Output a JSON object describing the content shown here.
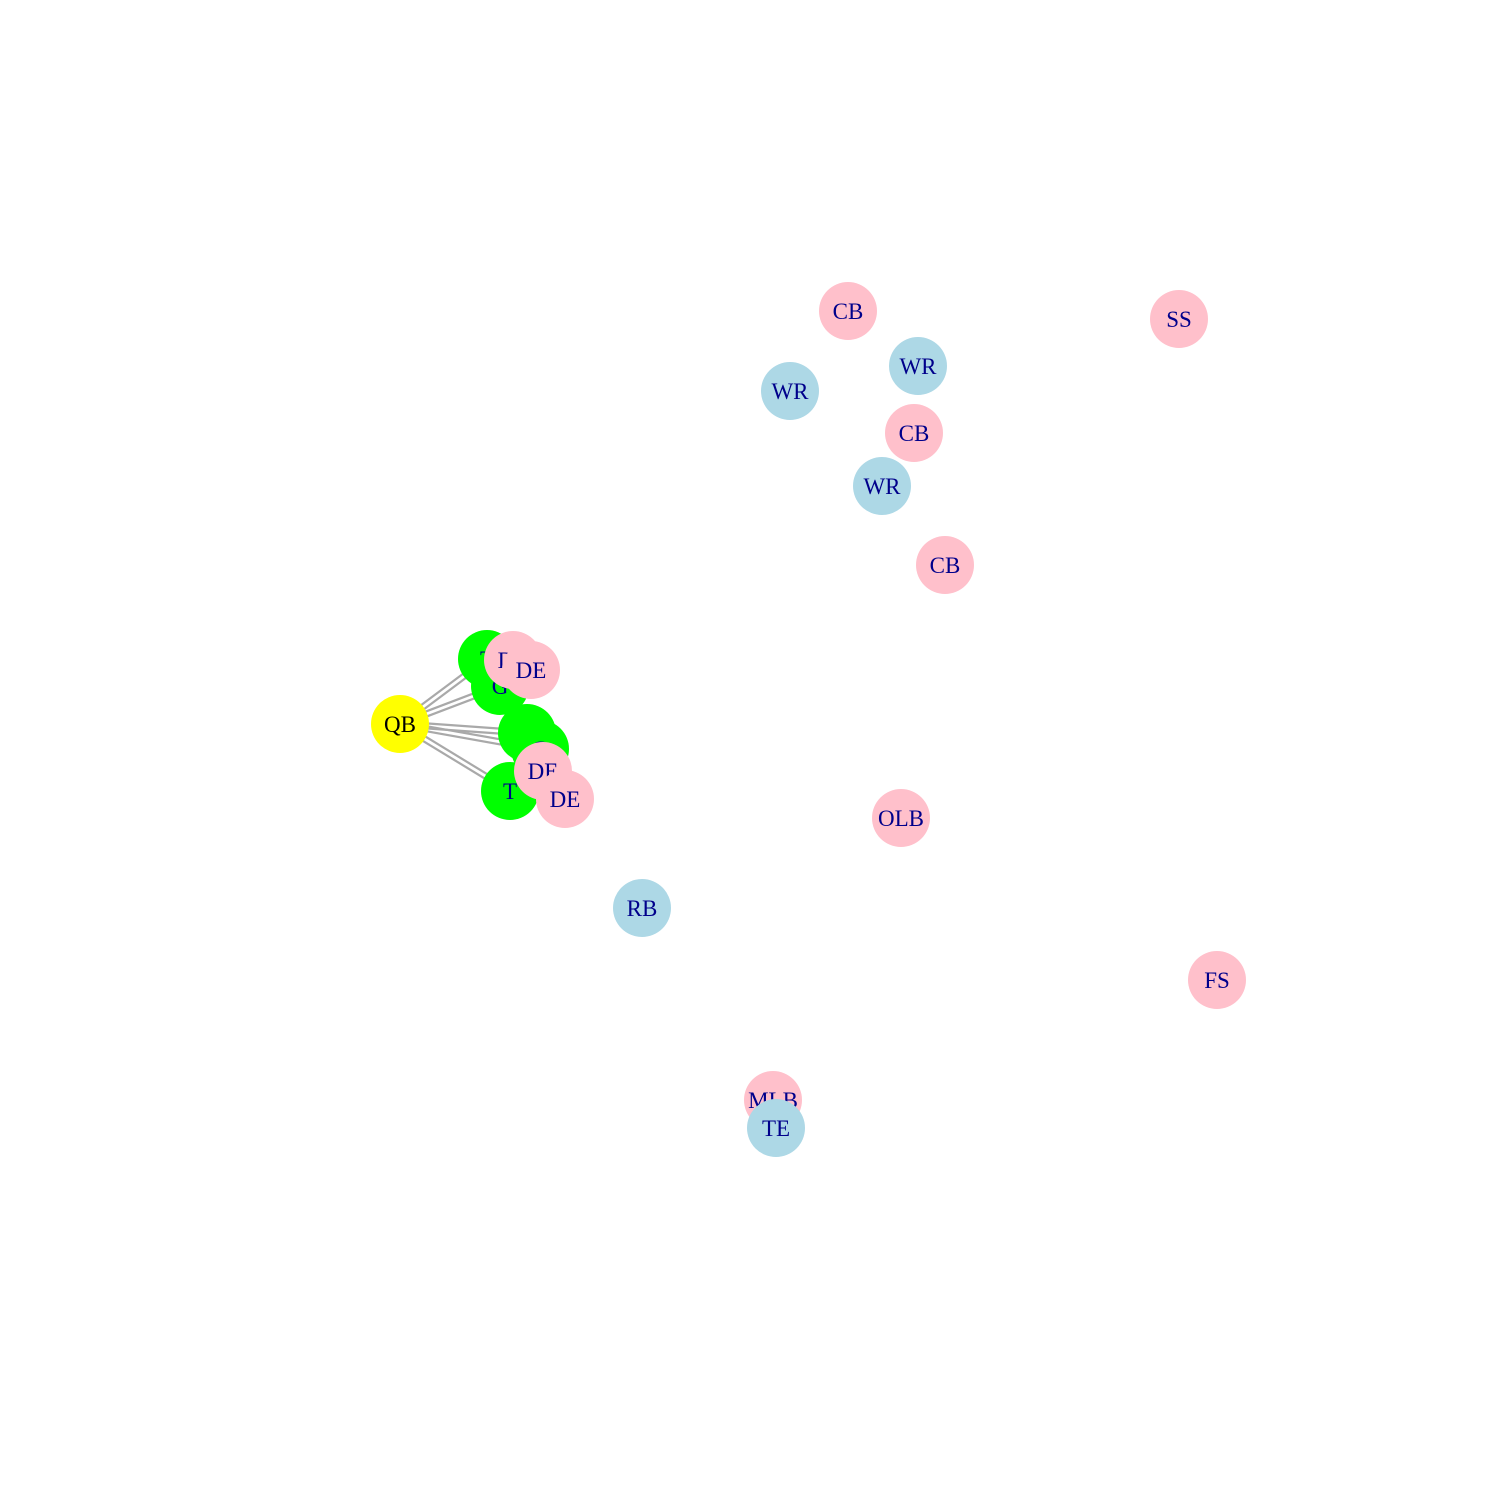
{
  "colors": {
    "offense": "#add8e6",
    "defense": "#ffc0cb",
    "line": "#00ff00",
    "quarterback": "#ffff00",
    "edge": "#a9a9a9",
    "label_default": "#00008b",
    "label_quarterback": "#000000"
  },
  "nodes": [
    {
      "id": "qb",
      "label": "QB",
      "group": "quarterback"
    },
    {
      "id": "t1",
      "label": "T",
      "group": "line"
    },
    {
      "id": "g1",
      "label": "G",
      "group": "line"
    },
    {
      "id": "c",
      "label": "C",
      "group": "line"
    },
    {
      "id": "g2",
      "label": "G",
      "group": "line"
    },
    {
      "id": "t2",
      "label": "T",
      "group": "line"
    },
    {
      "id": "dt",
      "label": "DT",
      "group": "defense"
    },
    {
      "id": "de1",
      "label": "DE",
      "group": "defense"
    },
    {
      "id": "de2",
      "label": "DE",
      "group": "defense"
    },
    {
      "id": "de3",
      "label": "DE",
      "group": "defense"
    },
    {
      "id": "cb1",
      "label": "CB",
      "group": "defense"
    },
    {
      "id": "ss",
      "label": "SS",
      "group": "defense"
    },
    {
      "id": "wr1",
      "label": "WR",
      "group": "offense"
    },
    {
      "id": "wr2",
      "label": "WR",
      "group": "offense"
    },
    {
      "id": "cb2",
      "label": "CB",
      "group": "defense"
    },
    {
      "id": "wr3",
      "label": "WR",
      "group": "offense"
    },
    {
      "id": "cb3",
      "label": "CB",
      "group": "defense"
    },
    {
      "id": "olb",
      "label": "OLB",
      "group": "defense"
    },
    {
      "id": "rb",
      "label": "RB",
      "group": "offense"
    },
    {
      "id": "fs",
      "label": "FS",
      "group": "defense"
    },
    {
      "id": "mlb",
      "label": "MLB",
      "group": "defense"
    },
    {
      "id": "te",
      "label": "TE",
      "group": "offense"
    }
  ],
  "edges": [
    [
      "qb",
      "t1"
    ],
    [
      "qb",
      "t1"
    ],
    [
      "qb",
      "g1"
    ],
    [
      "qb",
      "g1"
    ],
    [
      "qb",
      "c"
    ],
    [
      "qb",
      "c"
    ],
    [
      "qb",
      "g2"
    ],
    [
      "qb",
      "g2"
    ],
    [
      "qb",
      "t2"
    ],
    [
      "qb",
      "t2"
    ]
  ]
}
